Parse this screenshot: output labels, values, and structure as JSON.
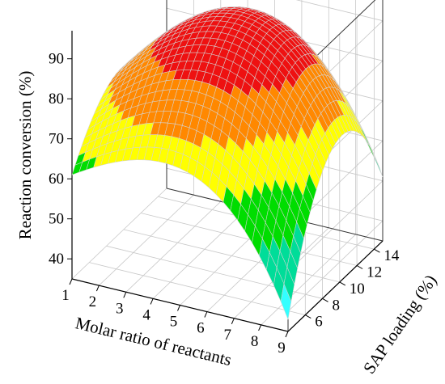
{
  "chart_data": {
    "type": "surface",
    "title": "",
    "xlabel": "Molar ratio of reactants",
    "ylabel": "SAP loading (%)",
    "zlabel": "Reaction conversion (%)",
    "x_ticks": [
      "1",
      "2",
      "3",
      "4",
      "5",
      "6",
      "7",
      "8",
      "9"
    ],
    "y_ticks": [
      "6",
      "8",
      "10",
      "12",
      "14"
    ],
    "z_ticks": [
      "40",
      "50",
      "60",
      "70",
      "80",
      "90"
    ],
    "xlim": [
      1,
      9
    ],
    "ylim": [
      4,
      15
    ],
    "zlim": [
      35,
      97
    ],
    "grid": true,
    "surface": {
      "peak": {
        "x": 5.2,
        "y": 10.3,
        "z": 95
      },
      "corners": [
        {
          "x": 1,
          "y": 4,
          "z": 61
        },
        {
          "x": 9,
          "y": 4,
          "z": 38
        },
        {
          "x": 1,
          "y": 15,
          "z": 57
        },
        {
          "x": 9,
          "y": 15,
          "z": 51
        }
      ],
      "color_bands": [
        {
          "from": 85,
          "color": "#ee1111"
        },
        {
          "from": 75,
          "color": "#ff8800"
        },
        {
          "from": 65,
          "color": "#ffff00"
        },
        {
          "from": 55,
          "color": "#00dd00"
        },
        {
          "from": 45,
          "color": "#00dd99"
        },
        {
          "from": 0,
          "color": "#33ffff"
        }
      ]
    },
    "colors": {
      "mesh": "#d4d4d4",
      "grid": "#c8c8c8",
      "axis": "#000000"
    }
  }
}
